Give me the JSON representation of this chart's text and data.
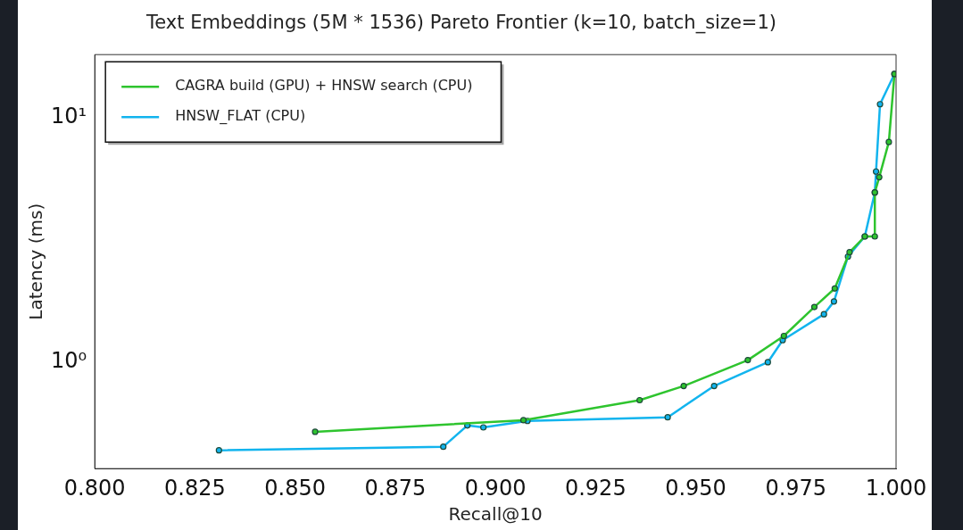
{
  "chart_data": {
    "type": "line",
    "title": "Text Embeddings (5M * 1536) Pareto Frontier (k=10, batch_size=1)",
    "xlabel": "Recall@10",
    "ylabel": "Latency (ms)",
    "series": [
      {
        "name": "CAGRA build (GPU) + HNSW search (CPU)",
        "color": "#2ec42e",
        "x": [
          0.855,
          0.907,
          0.936,
          0.947,
          0.963,
          0.972,
          0.9796,
          0.9847,
          0.9884,
          0.9922,
          0.9947,
          0.9947,
          0.9958,
          0.9982,
          0.9996
        ],
        "values": [
          0.52,
          0.58,
          0.7,
          0.8,
          1.02,
          1.28,
          1.68,
          2.0,
          2.81,
          3.26,
          3.26,
          4.93,
          5.69,
          7.92,
          15.0
        ]
      },
      {
        "name": "HNSW_FLAT (CPU)",
        "color": "#12b4ee",
        "x": [
          0.831,
          0.887,
          0.893,
          0.897,
          0.908,
          0.943,
          0.9546,
          0.968,
          0.9717,
          0.982,
          0.9845,
          0.988,
          0.9922,
          0.9947,
          0.995,
          0.996,
          0.9996
        ],
        "values": [
          0.437,
          0.452,
          0.552,
          0.542,
          0.576,
          0.596,
          0.8,
          1.0,
          1.23,
          1.57,
          1.77,
          2.7,
          3.26,
          4.93,
          6.0,
          11.3,
          15.0
        ]
      }
    ],
    "xlim": [
      0.8,
      1.0
    ],
    "xticks": [
      {
        "value": 0.8,
        "label": "0.800"
      },
      {
        "value": 0.825,
        "label": "0.825"
      },
      {
        "value": 0.85,
        "label": "0.850"
      },
      {
        "value": 0.875,
        "label": "0.875"
      },
      {
        "value": 0.9,
        "label": "0.900"
      },
      {
        "value": 0.925,
        "label": "0.925"
      },
      {
        "value": 0.95,
        "label": "0.950"
      },
      {
        "value": 0.975,
        "label": "0.975"
      },
      {
        "value": 1.0,
        "label": "1.000"
      }
    ],
    "ylim": [
      0.368,
      18.0
    ],
    "yticks": [
      {
        "value": 1,
        "label": "10⁰"
      },
      {
        "value": 10,
        "label": "10¹"
      }
    ],
    "log": "y",
    "grid": false,
    "legend": "top left",
    "marker": "circle",
    "line_style": "solid"
  }
}
